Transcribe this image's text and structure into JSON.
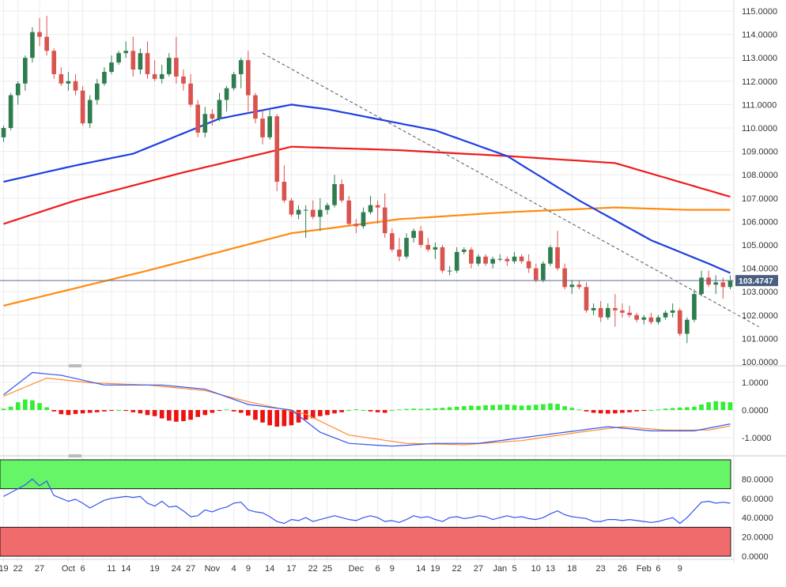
{
  "colors": {
    "background": "#ffffff",
    "grid": "#ececec",
    "axis_text": "#333333",
    "up_candle": "#2e7d4f",
    "down_candle": "#d9534f",
    "sma_blue": "#1f3fe0",
    "sma_red": "#ee1c1c",
    "sma_orange": "#ff8c10",
    "trendline": "#555555",
    "last_price_line": "#5a6e8c",
    "last_price_bg": "#4a5f80",
    "macd_pos": "#33ee33",
    "macd_neg": "#ee1111",
    "macd_line": "#3355ee",
    "signal_line": "#ff8c30",
    "rsi_line": "#3355ee",
    "overbought_fill": "#66f566",
    "oversold_fill": "#f06b6b"
  },
  "chart_data": [
    {
      "type": "candlestick",
      "title": "",
      "ylim": [
        100.0,
        115.0
      ],
      "y_ticks": [
        "115.0000",
        "114.0000",
        "113.0000",
        "112.0000",
        "111.0000",
        "110.0000",
        "109.0000",
        "108.0000",
        "107.0000",
        "106.0000",
        "105.0000",
        "104.0000",
        "103.0000",
        "102.0000",
        "101.0000",
        "100.0000"
      ],
      "last_price": 103.4747,
      "last_price_label": "103.4747",
      "x_labels": [
        "19",
        "22",
        "27",
        "Oct",
        "6",
        "11",
        "14",
        "19",
        "24",
        "27",
        "Nov",
        "4",
        "9",
        "14",
        "17",
        "22",
        "25",
        "Dec",
        "6",
        "9",
        "14",
        "19",
        "22",
        "27",
        "Jan",
        "5",
        "10",
        "13",
        "18",
        "23",
        "26",
        "Feb",
        "6",
        "9"
      ],
      "candles": [
        [
          109.6,
          110.1,
          109.4,
          110.0
        ],
        [
          110.0,
          111.5,
          109.9,
          111.4
        ],
        [
          111.4,
          112.0,
          111.0,
          111.9
        ],
        [
          111.9,
          113.1,
          111.6,
          113.0
        ],
        [
          113.0,
          114.3,
          112.8,
          114.1
        ],
        [
          114.1,
          114.7,
          113.5,
          113.9
        ],
        [
          113.9,
          114.8,
          113.1,
          113.3
        ],
        [
          113.3,
          113.4,
          112.1,
          112.3
        ],
        [
          112.3,
          112.6,
          111.8,
          111.9
        ],
        [
          111.9,
          112.4,
          111.6,
          112.0
        ],
        [
          112.0,
          112.3,
          111.4,
          111.6
        ],
        [
          111.6,
          111.8,
          110.1,
          110.2
        ],
        [
          110.2,
          111.4,
          110.0,
          111.2
        ],
        [
          111.2,
          112.1,
          111.0,
          111.9
        ],
        [
          111.9,
          112.6,
          111.8,
          112.4
        ],
        [
          112.4,
          113.1,
          112.3,
          112.8
        ],
        [
          112.8,
          113.3,
          112.7,
          113.2
        ],
        [
          113.2,
          113.7,
          113.0,
          113.3
        ],
        [
          113.3,
          113.9,
          112.2,
          112.5
        ],
        [
          112.5,
          113.4,
          112.3,
          113.2
        ],
        [
          113.2,
          113.7,
          112.1,
          112.3
        ],
        [
          112.3,
          112.9,
          112.0,
          112.1
        ],
        [
          112.1,
          112.7,
          111.9,
          112.3
        ],
        [
          112.3,
          113.2,
          112.2,
          113.0
        ],
        [
          113.0,
          113.9,
          111.9,
          112.2
        ],
        [
          112.2,
          112.5,
          111.6,
          111.9
        ],
        [
          111.9,
          112.3,
          110.9,
          111.0
        ],
        [
          111.0,
          111.2,
          109.6,
          109.8
        ],
        [
          109.8,
          110.9,
          109.6,
          110.6
        ],
        [
          110.6,
          110.8,
          110.1,
          110.4
        ],
        [
          110.4,
          111.5,
          110.3,
          111.2
        ],
        [
          111.2,
          111.8,
          110.7,
          111.7
        ],
        [
          111.7,
          112.4,
          111.6,
          112.3
        ],
        [
          112.3,
          113.0,
          111.7,
          112.9
        ],
        [
          112.9,
          113.3,
          110.7,
          111.4
        ],
        [
          111.4,
          111.5,
          110.2,
          110.4
        ],
        [
          110.4,
          110.8,
          109.3,
          109.6
        ],
        [
          109.6,
          110.8,
          109.5,
          110.5
        ],
        [
          110.5,
          110.6,
          107.3,
          107.7
        ],
        [
          107.7,
          108.4,
          106.8,
          106.9
        ],
        [
          106.9,
          107.0,
          106.2,
          106.3
        ],
        [
          106.3,
          106.7,
          106.1,
          106.5
        ],
        [
          106.5,
          106.7,
          105.3,
          106.5
        ],
        [
          106.5,
          106.9,
          106.1,
          106.2
        ],
        [
          106.2,
          107.0,
          105.6,
          106.5
        ],
        [
          106.5,
          106.8,
          106.3,
          106.7
        ],
        [
          106.7,
          108.0,
          106.6,
          107.6
        ],
        [
          107.6,
          107.8,
          106.8,
          106.9
        ],
        [
          106.9,
          107.1,
          105.8,
          105.9
        ],
        [
          105.9,
          106.1,
          105.5,
          105.8
        ],
        [
          105.8,
          106.6,
          105.7,
          106.4
        ],
        [
          106.4,
          107.1,
          106.3,
          106.7
        ],
        [
          106.7,
          106.9,
          105.9,
          106.6
        ],
        [
          106.6,
          107.2,
          105.3,
          105.5
        ],
        [
          105.5,
          105.7,
          104.7,
          104.8
        ],
        [
          104.8,
          105.3,
          104.3,
          104.5
        ],
        [
          104.5,
          105.5,
          104.4,
          105.3
        ],
        [
          105.3,
          105.7,
          105.1,
          105.6
        ],
        [
          105.6,
          105.8,
          104.9,
          105.0
        ],
        [
          105.0,
          105.3,
          104.7,
          104.8
        ],
        [
          104.8,
          105.1,
          104.4,
          104.9
        ],
        [
          104.9,
          105.0,
          103.8,
          103.9
        ],
        [
          103.9,
          104.1,
          103.7,
          103.9
        ],
        [
          103.9,
          104.9,
          103.8,
          104.7
        ],
        [
          104.7,
          104.9,
          104.6,
          104.8
        ],
        [
          104.8,
          104.9,
          104.0,
          104.2
        ],
        [
          104.2,
          104.6,
          104.1,
          104.5
        ],
        [
          104.5,
          104.6,
          104.1,
          104.2
        ],
        [
          104.2,
          104.5,
          104.0,
          104.4
        ],
        [
          104.4,
          104.6,
          104.3,
          104.4
        ],
        [
          104.4,
          104.5,
          104.1,
          104.3
        ],
        [
          104.3,
          104.7,
          104.2,
          104.5
        ],
        [
          104.5,
          104.6,
          104.2,
          104.3
        ],
        [
          104.3,
          104.6,
          103.8,
          104.0
        ],
        [
          104.0,
          104.2,
          103.4,
          103.5
        ],
        [
          103.5,
          104.3,
          103.4,
          104.2
        ],
        [
          104.2,
          105.0,
          104.1,
          104.9
        ],
        [
          104.9,
          105.6,
          103.9,
          104.0
        ],
        [
          104.0,
          104.2,
          103.1,
          103.2
        ],
        [
          103.2,
          103.5,
          102.9,
          103.3
        ],
        [
          103.3,
          103.5,
          103.1,
          103.2
        ],
        [
          103.2,
          103.4,
          102.1,
          102.2
        ],
        [
          102.2,
          102.5,
          102.0,
          102.3
        ],
        [
          102.3,
          102.6,
          101.7,
          101.9
        ],
        [
          101.9,
          102.5,
          101.8,
          102.3
        ],
        [
          102.3,
          102.9,
          101.5,
          102.2
        ],
        [
          102.2,
          102.5,
          101.9,
          102.1
        ],
        [
          102.1,
          102.4,
          101.9,
          102.0
        ],
        [
          102.0,
          102.1,
          101.7,
          101.8
        ],
        [
          101.8,
          102.0,
          101.6,
          101.9
        ],
        [
          101.9,
          102.1,
          101.6,
          101.7
        ],
        [
          101.7,
          102.0,
          101.6,
          101.9
        ],
        [
          101.9,
          102.2,
          101.8,
          102.1
        ],
        [
          102.1,
          102.5,
          101.9,
          102.2
        ],
        [
          102.2,
          102.3,
          101.1,
          101.2
        ],
        [
          101.2,
          101.9,
          100.8,
          101.8
        ],
        [
          101.8,
          103.1,
          101.7,
          102.9
        ],
        [
          102.9,
          103.9,
          102.8,
          103.6
        ],
        [
          103.6,
          103.9,
          103.2,
          103.3
        ],
        [
          103.3,
          103.7,
          102.9,
          103.4
        ],
        [
          103.4,
          103.6,
          102.7,
          103.2
        ],
        [
          103.2,
          103.7,
          103.1,
          103.47
        ]
      ],
      "sma_blue_key": [
        [
          0,
          107.7
        ],
        [
          10,
          108.4
        ],
        [
          18,
          108.9
        ],
        [
          30,
          110.4
        ],
        [
          40,
          111.0
        ],
        [
          45,
          110.8
        ],
        [
          60,
          109.9
        ],
        [
          70,
          108.8
        ],
        [
          80,
          106.9
        ],
        [
          90,
          105.2
        ],
        [
          98,
          104.2
        ],
        [
          101,
          103.8
        ],
        [
          105,
          103.7
        ]
      ],
      "sma_red_key": [
        [
          0,
          105.9
        ],
        [
          10,
          106.9
        ],
        [
          25,
          108.1
        ],
        [
          40,
          109.2
        ],
        [
          55,
          109.05
        ],
        [
          70,
          108.8
        ],
        [
          85,
          108.5
        ],
        [
          95,
          107.6
        ],
        [
          105,
          106.7
        ]
      ],
      "sma_orange_key": [
        [
          0,
          102.4
        ],
        [
          20,
          103.9
        ],
        [
          40,
          105.5
        ],
        [
          55,
          106.1
        ],
        [
          70,
          106.4
        ],
        [
          85,
          106.6
        ],
        [
          95,
          106.5
        ],
        [
          105,
          106.5
        ]
      ],
      "trendline": [
        [
          36,
          113.2
        ],
        [
          105,
          101.5
        ]
      ]
    },
    {
      "type": "macd",
      "y_ticks": [
        "1.0000",
        "0.0000",
        "-1.0000"
      ],
      "ylim": [
        -1.45,
        1.45
      ],
      "histogram": [
        0.05,
        0.12,
        0.28,
        0.38,
        0.35,
        0.25,
        0.1,
        -0.05,
        -0.15,
        -0.18,
        -0.14,
        -0.12,
        -0.1,
        -0.08,
        -0.05,
        -0.02,
        0.0,
        -0.03,
        -0.08,
        -0.12,
        -0.18,
        -0.22,
        -0.3,
        -0.38,
        -0.42,
        -0.4,
        -0.35,
        -0.25,
        -0.18,
        -0.1,
        -0.02,
        0.02,
        -0.05,
        -0.1,
        -0.2,
        -0.35,
        -0.45,
        -0.55,
        -0.6,
        -0.58,
        -0.55,
        -0.45,
        -0.35,
        -0.3,
        -0.22,
        -0.18,
        -0.12,
        -0.08,
        0.0,
        0.03,
        0.0,
        -0.05,
        -0.08,
        -0.1,
        0.0,
        0.02,
        0.04,
        0.05,
        0.04,
        0.05,
        0.06,
        0.08,
        0.1,
        0.12,
        0.14,
        0.16,
        0.15,
        0.17,
        0.18,
        0.19,
        0.2,
        0.18,
        0.16,
        0.17,
        0.19,
        0.21,
        0.24,
        0.22,
        0.14,
        0.08,
        0.02,
        -0.05,
        -0.1,
        -0.12,
        -0.13,
        -0.12,
        -0.1,
        -0.08,
        -0.05,
        -0.03,
        0.0,
        0.02,
        0.05,
        0.07,
        0.09,
        0.1,
        0.12,
        0.2,
        0.28,
        0.32,
        0.3,
        0.28
      ],
      "macd_key": [
        [
          0,
          0.55
        ],
        [
          4,
          1.35
        ],
        [
          8,
          1.25
        ],
        [
          14,
          0.9
        ],
        [
          22,
          0.9
        ],
        [
          28,
          0.75
        ],
        [
          34,
          0.2
        ],
        [
          40,
          0.0
        ],
        [
          44,
          -0.8
        ],
        [
          48,
          -1.2
        ],
        [
          54,
          -1.3
        ],
        [
          60,
          -1.2
        ],
        [
          66,
          -1.2
        ],
        [
          72,
          -1.0
        ],
        [
          78,
          -0.8
        ],
        [
          84,
          -0.6
        ],
        [
          90,
          -0.75
        ],
        [
          96,
          -0.75
        ],
        [
          101,
          -0.5
        ],
        [
          105,
          -0.1
        ]
      ],
      "signal_key": [
        [
          0,
          0.5
        ],
        [
          6,
          1.15
        ],
        [
          12,
          0.98
        ],
        [
          20,
          0.9
        ],
        [
          28,
          0.7
        ],
        [
          34,
          0.3
        ],
        [
          42,
          -0.15
        ],
        [
          48,
          -0.9
        ],
        [
          56,
          -1.2
        ],
        [
          64,
          -1.25
        ],
        [
          72,
          -1.1
        ],
        [
          80,
          -0.8
        ],
        [
          86,
          -0.6
        ],
        [
          92,
          -0.72
        ],
        [
          98,
          -0.72
        ],
        [
          105,
          -0.38
        ]
      ]
    },
    {
      "type": "rsi",
      "y_ticks": [
        "80.0000",
        "60.0000",
        "40.0000",
        "20.0000",
        "0.0000"
      ],
      "ylim": [
        0,
        100
      ],
      "overbought": [
        70,
        100
      ],
      "oversold": [
        0,
        30
      ],
      "values": [
        62,
        66,
        70,
        74,
        80,
        73,
        78,
        63,
        60,
        57,
        59,
        55,
        50,
        54,
        58,
        60,
        61,
        62,
        61,
        62,
        55,
        52,
        57,
        51,
        52,
        47,
        41,
        42,
        48,
        46,
        49,
        51,
        55,
        56,
        48,
        46,
        45,
        41,
        36,
        34,
        38,
        37,
        40,
        36,
        38,
        40,
        42,
        40,
        38,
        37,
        40,
        42,
        40,
        36,
        37,
        35,
        38,
        42,
        40,
        41,
        38,
        36,
        40,
        41,
        39,
        40,
        42,
        41,
        38,
        40,
        42,
        40,
        41,
        39,
        38,
        40,
        44,
        47,
        43,
        41,
        40,
        39,
        36,
        36,
        38,
        38,
        37,
        38,
        37,
        36,
        35,
        36,
        38,
        40,
        34,
        40,
        48,
        56,
        57,
        55,
        56,
        55
      ]
    }
  ]
}
